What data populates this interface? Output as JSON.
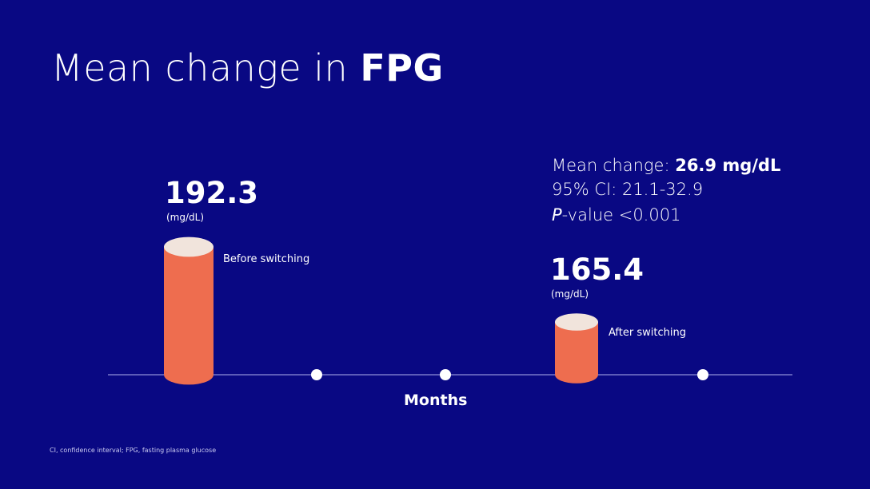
{
  "title": {
    "prefix": "Mean change in ",
    "emphasis": "FPG"
  },
  "stats": {
    "mean_change_label": "Mean change: ",
    "mean_change_value": "26.9 mg/dL",
    "ci": "95% CI: 21.1-32.9",
    "p_letter": "P",
    "p_rest": "-value <0.001"
  },
  "chart_data": {
    "type": "bar",
    "categories": [
      "Before switching",
      "After switching"
    ],
    "values": [
      192.3,
      165.4
    ],
    "value_labels": [
      "192.3",
      "165.4"
    ],
    "unit": "(mg/dL)",
    "xlabel": "Months",
    "ylabel": "",
    "ylim": [
      0,
      200
    ],
    "timeline_marker_count": 3,
    "bar_color": "#ee6d4f",
    "bar_top_color": "#f1e4dc"
  },
  "footnote": "CI, confidence interval; FPG, fasting plasma glucose"
}
